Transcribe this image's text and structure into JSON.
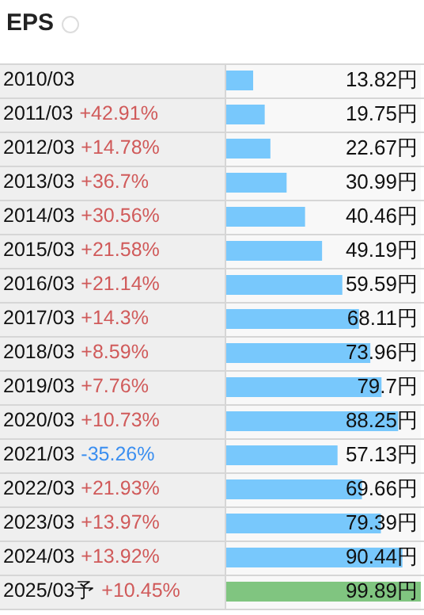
{
  "chart_data": {
    "type": "bar",
    "orientation": "horizontal",
    "title": "EPS",
    "categories": [
      "2010/03",
      "2011/03 +42.91%",
      "2012/03 +14.78%",
      "2013/03 +36.7%",
      "2014/03 +30.56%",
      "2015/03 +21.58%",
      "2016/03 +21.14%",
      "2017/03 +14.3%",
      "2018/03 +8.59%",
      "2019/03 +7.76%",
      "2020/03 +10.73%",
      "2021/03 -35.26%",
      "2022/03 +21.93%",
      "2023/03 +13.97%",
      "2024/03 +13.92%",
      "2025/03予 +10.45%"
    ],
    "values": [
      13.82,
      19.75,
      22.67,
      30.99,
      40.46,
      49.19,
      59.59,
      68.11,
      73.96,
      79.7,
      88.25,
      57.13,
      69.66,
      79.39,
      90.44,
      99.89
    ],
    "value_labels": [
      "13.82円",
      "19.75円",
      "22.67円",
      "30.99円",
      "40.46円",
      "49.19円",
      "59.59円",
      "68.11円",
      "73.96円",
      "79.7円",
      "88.25円",
      "57.13円",
      "69.66円",
      "79.39円",
      "90.44円",
      "99.89円"
    ],
    "colors": [
      "#78c8fc",
      "#78c8fc",
      "#78c8fc",
      "#78c8fc",
      "#78c8fc",
      "#78c8fc",
      "#78c8fc",
      "#78c8fc",
      "#78c8fc",
      "#78c8fc",
      "#78c8fc",
      "#78c8fc",
      "#78c8fc",
      "#78c8fc",
      "#78c8fc",
      "#80c580"
    ],
    "legend": false
  }
}
